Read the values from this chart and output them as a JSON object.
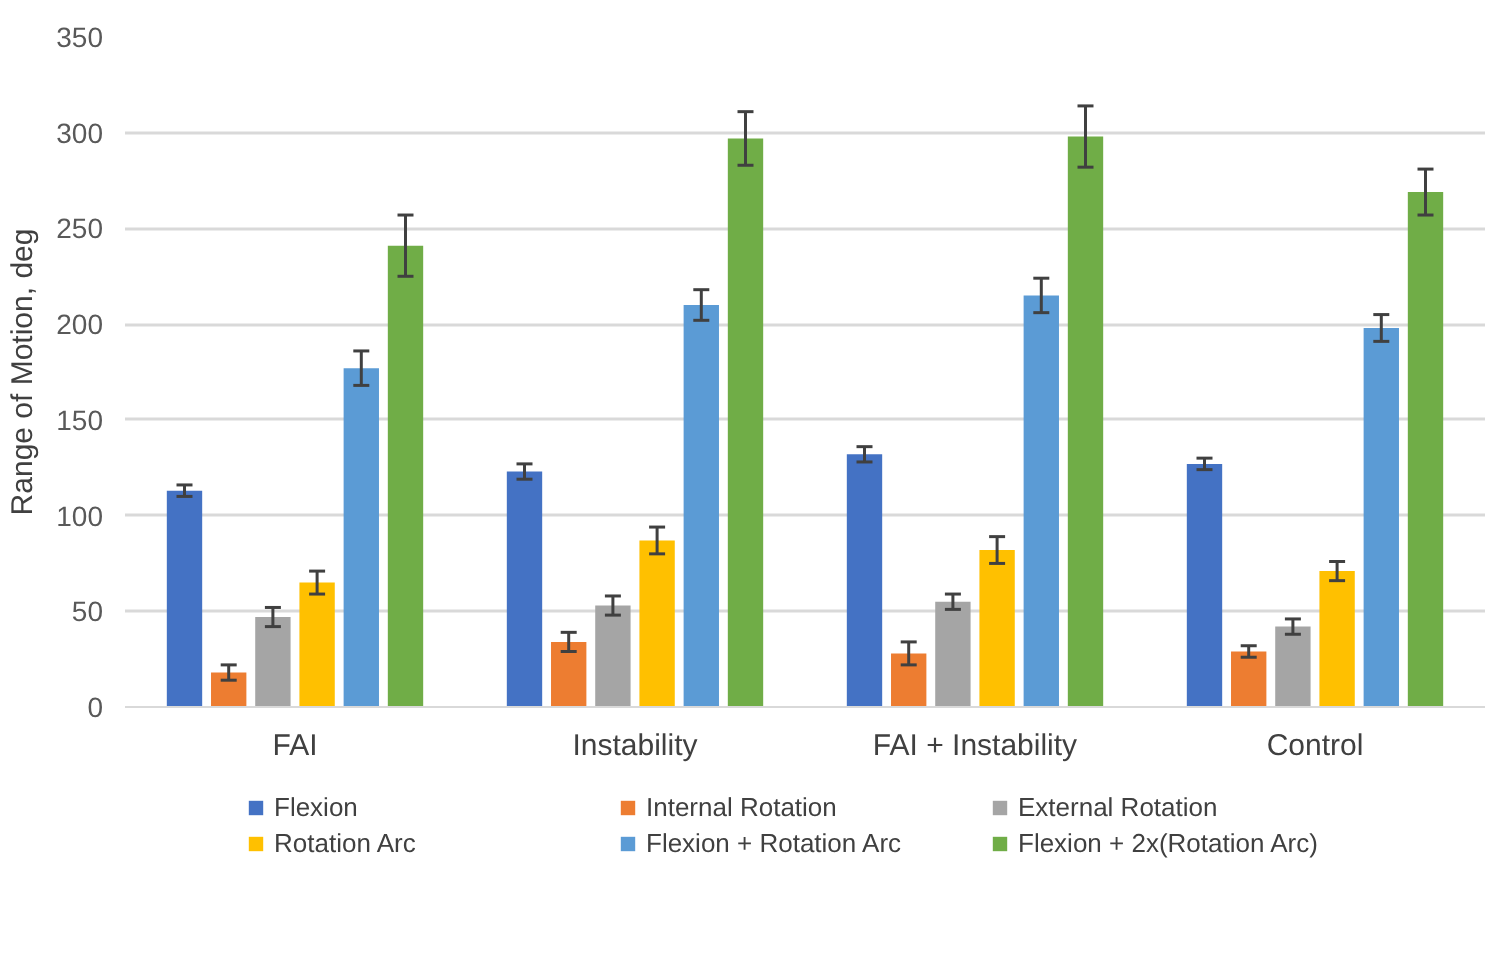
{
  "chart_data": {
    "type": "bar",
    "ylabel": "Range of Motion, deg",
    "categories": [
      "FAI",
      "Instability",
      "FAI + Instability",
      "Control"
    ],
    "series": [
      {
        "name": "Flexion",
        "color": "#4472c4",
        "values": [
          113,
          123,
          132,
          127
        ],
        "errors": [
          3,
          4,
          4,
          3
        ]
      },
      {
        "name": "Internal Rotation",
        "color": "#ed7d31",
        "values": [
          18,
          34,
          28,
          29
        ],
        "errors": [
          4,
          5,
          6,
          3
        ]
      },
      {
        "name": "External Rotation",
        "color": "#a5a5a5",
        "values": [
          47,
          53,
          55,
          42
        ],
        "errors": [
          5,
          5,
          4,
          4
        ]
      },
      {
        "name": "Rotation Arc",
        "color": "#ffc000",
        "values": [
          65,
          87,
          82,
          71
        ],
        "errors": [
          6,
          7,
          7,
          5
        ]
      },
      {
        "name": "Flexion + Rotation Arc",
        "color": "#5b9bd5",
        "values": [
          177,
          210,
          215,
          198
        ],
        "errors": [
          9,
          8,
          9,
          7
        ]
      },
      {
        "name": "Flexion + 2x(Rotation Arc)",
        "color": "#70ad47",
        "values": [
          241,
          297,
          298,
          269
        ],
        "errors": [
          16,
          14,
          16,
          12
        ]
      }
    ],
    "ylim": [
      0,
      350
    ],
    "yticks": [
      0,
      50,
      100,
      150,
      200,
      250,
      300,
      350
    ],
    "grid": "y",
    "legend": "bottom"
  }
}
